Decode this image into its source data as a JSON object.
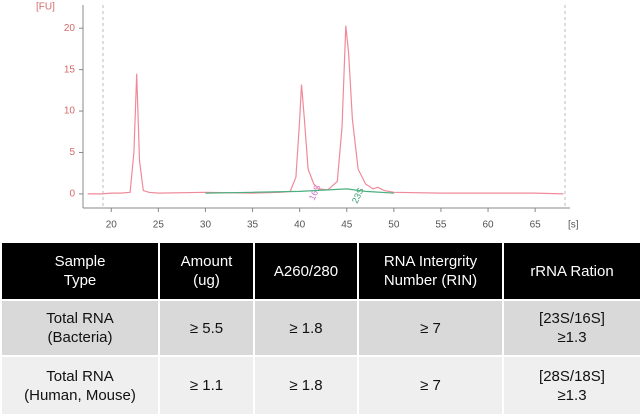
{
  "chart_data": {
    "type": "line",
    "x_label": "[s]",
    "y_label": "[FU]",
    "xlim": [
      17,
      68.7
    ],
    "ylim": [
      -1.7,
      22.8
    ],
    "xticks": [
      20,
      25,
      30,
      35,
      40,
      45,
      50,
      55,
      60,
      65
    ],
    "yticks": [
      0,
      5,
      10,
      15,
      20
    ],
    "grid": false,
    "series": [
      {
        "color": "#f08a9a",
        "x": [
          17.5,
          19,
          20,
          21,
          22,
          22.4,
          22.7,
          23.0,
          23.4,
          24,
          25,
          30,
          35,
          38,
          39,
          39.6,
          40.0,
          40.2,
          40.5,
          40.9,
          41.5,
          42,
          43,
          44,
          44.5,
          44.9,
          45.2,
          45.6,
          46.2,
          47,
          47.8,
          48.3,
          49,
          50,
          55,
          60,
          65,
          68
        ],
        "values": [
          0,
          0,
          0.1,
          0.1,
          0.2,
          5,
          14.5,
          4,
          0.4,
          0.2,
          0.1,
          0.2,
          0.1,
          0.2,
          0.3,
          2,
          9,
          13.2,
          9,
          3,
          1.2,
          0.6,
          0.5,
          1.5,
          8,
          20.3,
          17,
          9,
          3,
          1.2,
          0.6,
          0.8,
          0.4,
          0.2,
          0.1,
          0.1,
          0.1,
          0
        ]
      },
      {
        "color": "#4caf80",
        "x": [
          30,
          35,
          40,
          45,
          47,
          50
        ],
        "values": [
          0.1,
          0.2,
          0.3,
          0.6,
          0.3,
          0.1
        ]
      }
    ],
    "annotations": [
      "16S",
      "23S"
    ]
  },
  "table": {
    "header": [
      "Sample\nType",
      "Amount\n(ug)",
      "A260/280",
      "RNA Intergrity\nNumber (RIN)",
      "rRNA Ration"
    ],
    "rows": [
      [
        "Total RNA\n(Bacteria)",
        "≥ 5.5",
        "≥ 1.8",
        "≥ 7",
        "[23S/16S]\n≥1.3"
      ],
      [
        "Total RNA\n(Human, Mouse)",
        "≥ 1.1",
        "≥ 1.8",
        "≥ 7",
        "[28S/18S]\n≥1.3"
      ]
    ]
  }
}
